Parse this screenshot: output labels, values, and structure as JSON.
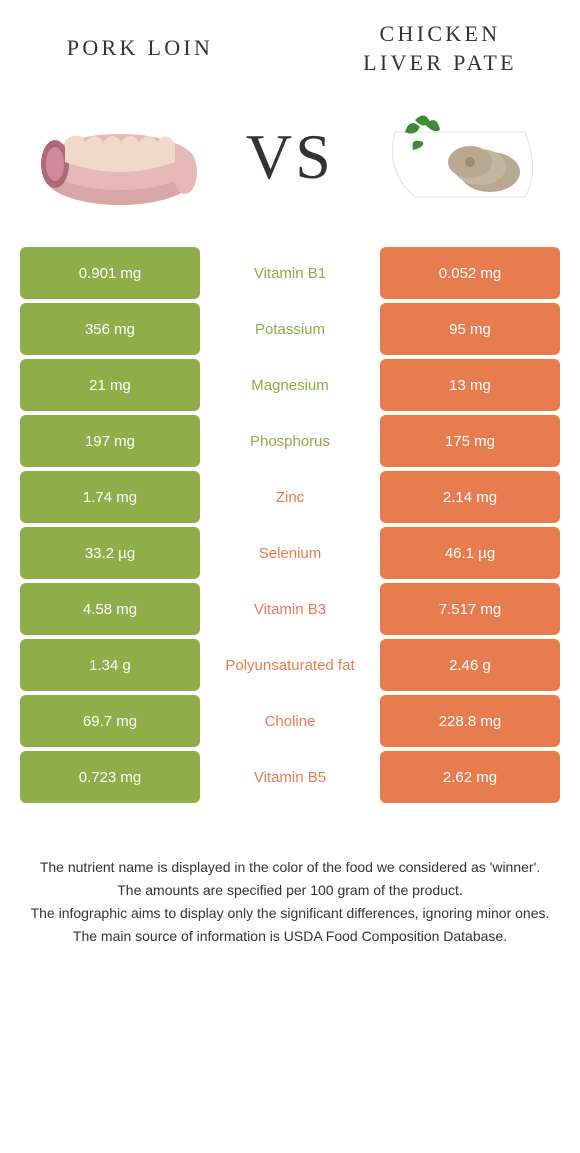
{
  "header": {
    "left_title": "PORK LOIN",
    "right_title": "CHICKEN LIVER PATE",
    "vs": "VS"
  },
  "colors": {
    "left": "#8fad48",
    "right": "#e77c4f",
    "row_bg_left": "#8fad48",
    "row_bg_right": "#e77c4f"
  },
  "rows": [
    {
      "left": "0.901 mg",
      "mid": "Vitamin B1",
      "right": "0.052 mg",
      "winner": "left"
    },
    {
      "left": "356 mg",
      "mid": "Potassium",
      "right": "95 mg",
      "winner": "left"
    },
    {
      "left": "21 mg",
      "mid": "Magnesium",
      "right": "13 mg",
      "winner": "left"
    },
    {
      "left": "197 mg",
      "mid": "Phosphorus",
      "right": "175 mg",
      "winner": "left"
    },
    {
      "left": "1.74 mg",
      "mid": "Zinc",
      "right": "2.14 mg",
      "winner": "right"
    },
    {
      "left": "33.2 µg",
      "mid": "Selenium",
      "right": "46.1 µg",
      "winner": "right"
    },
    {
      "left": "4.58 mg",
      "mid": "Vitamin B3",
      "right": "7.517 mg",
      "winner": "right"
    },
    {
      "left": "1.34 g",
      "mid": "Polyunsaturated fat",
      "right": "2.46 g",
      "winner": "right"
    },
    {
      "left": "69.7 mg",
      "mid": "Choline",
      "right": "228.8 mg",
      "winner": "right"
    },
    {
      "left": "0.723 mg",
      "mid": "Vitamin B5",
      "right": "2.62 mg",
      "winner": "right"
    }
  ],
  "footer": {
    "line1": "The nutrient name is displayed in the color of the food we considered as 'winner'.",
    "line2": "The amounts are specified per 100 gram of the product.",
    "line3": "The infographic aims to display only the significant differences, ignoring minor ones.",
    "line4": "The main source of information is USDA Food Composition Database."
  }
}
